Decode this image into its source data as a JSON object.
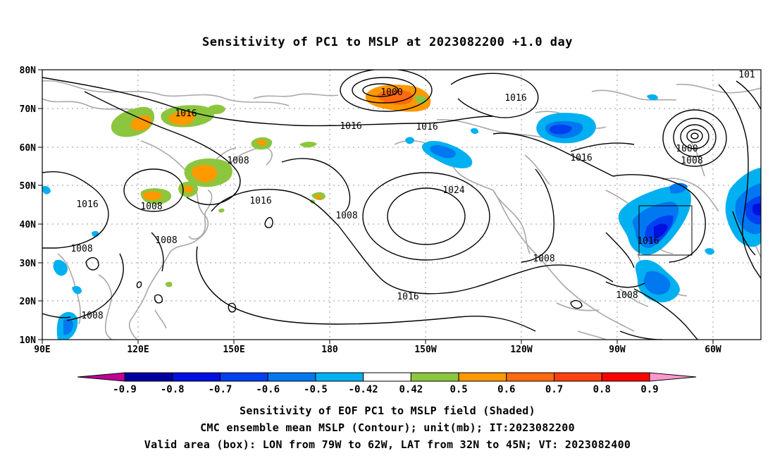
{
  "title": "Sensitivity of PC1 to MSLP at 2023082200 +1.0 day",
  "axes": {
    "lat_labels": [
      "80N",
      "70N",
      "60N",
      "50N",
      "40N",
      "30N",
      "20N",
      "10N"
    ],
    "lon_labels": [
      "90E",
      "120E",
      "150E",
      "180",
      "150W",
      "120W",
      "90W",
      "60W"
    ]
  },
  "contour_labels": [
    "1000",
    "1016",
    "1008",
    "1016",
    "1016",
    "1016",
    "1016",
    "1000",
    "1008",
    "1016",
    "1008",
    "1008",
    "1016",
    "1008",
    "1024",
    "1008",
    "1016",
    "1008",
    "1016",
    "1008",
    "1008",
    "101"
  ],
  "colorbar": {
    "tick_labels": [
      "-0.9",
      "-0.8",
      "-0.7",
      "-0.6",
      "-0.5",
      "-0.42",
      "0.42",
      "0.5",
      "0.6",
      "0.7",
      "0.8",
      "0.9"
    ],
    "colors": [
      "#0000a0",
      "#0010e0",
      "#0040f0",
      "#0078f0",
      "#00b0f0",
      "#ffffff",
      "#8cc63f",
      "#ff9900",
      "#ff6a10",
      "#ff4010",
      "#ff0000"
    ],
    "under_color": "#c00098",
    "over_color": "#ff99cc"
  },
  "captions": {
    "line1": "Sensitivity of EOF PC1 to MSLP field (Shaded)",
    "line2": "CMC ensemble mean MSLP (Contour); unit(mb); IT:2023082200",
    "line3": "Valid area (box): LON from 79W to 62W, LAT from 32N to 45N; VT: 2023082400"
  }
}
